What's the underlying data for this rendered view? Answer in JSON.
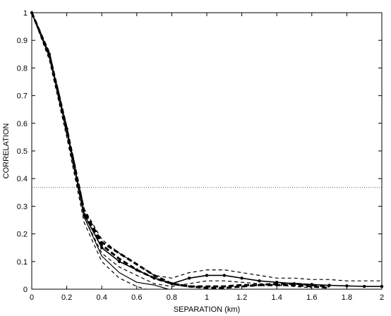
{
  "chart_data": {
    "type": "line",
    "title": "",
    "xlabel": "SEPARATION (km)",
    "ylabel": "CORRELATION",
    "xlim": [
      0,
      2
    ],
    "ylim": [
      0,
      1
    ],
    "xticks": [
      0,
      0.2,
      0.4,
      0.6,
      0.8,
      1,
      1.2,
      1.4,
      1.6,
      1.8,
      2
    ],
    "xtick_labels": [
      "0",
      "0.2",
      "0.4",
      "0.6",
      "0.8",
      "1",
      "1.2",
      "1.4",
      "1.6",
      "1.8",
      "2"
    ],
    "yticks": [
      0,
      0.1,
      0.2,
      0.3,
      0.4,
      0.5,
      0.6,
      0.7,
      0.8,
      0.9,
      1
    ],
    "ytick_labels": [
      "0",
      "0.1",
      "0.2",
      "0.3",
      "0.4",
      "0.5",
      "0.6",
      "0.7",
      "0.8",
      "0.9",
      "1"
    ],
    "grid": false,
    "reference_line": {
      "y": 0.368,
      "style": "dotted"
    },
    "series": [
      {
        "style": "solid-markers",
        "color": "#000000",
        "x": [
          0,
          0.1,
          0.2,
          0.3,
          0.4,
          0.5,
          0.6,
          0.7,
          0.8,
          0.9,
          1.0,
          1.1,
          1.2,
          1.3,
          1.4,
          1.5,
          1.6,
          1.7,
          1.8,
          1.9,
          2.0
        ],
        "y": [
          1.0,
          0.85,
          0.58,
          0.27,
          0.15,
          0.1,
          0.07,
          0.04,
          0.02,
          0.04,
          0.05,
          0.05,
          0.04,
          0.03,
          0.025,
          0.02,
          0.017,
          0.014,
          0.012,
          0.01,
          0.01
        ]
      },
      {
        "style": "solid",
        "color": "#000000",
        "x": [
          0,
          0.1,
          0.2,
          0.3,
          0.4,
          0.5,
          0.6,
          0.7,
          0.78
        ],
        "y": [
          1.0,
          0.84,
          0.57,
          0.26,
          0.12,
          0.06,
          0.025,
          0.015,
          0.0
        ]
      },
      {
        "style": "heavy-dashed",
        "color": "#000000",
        "x": [
          0,
          0.1,
          0.2,
          0.3,
          0.4,
          0.5,
          0.6,
          0.7,
          0.8,
          0.9,
          1.0,
          1.1,
          1.2,
          1.3,
          1.4,
          1.5,
          1.6,
          1.7
        ],
        "y": [
          1.0,
          0.85,
          0.58,
          0.28,
          0.17,
          0.13,
          0.09,
          0.05,
          0.02,
          0.01,
          0.01,
          0.01,
          0.015,
          0.015,
          0.015,
          0.015,
          0.01,
          0.005
        ]
      },
      {
        "style": "heavy-dashed",
        "color": "#000000",
        "x": [
          0,
          0.1,
          0.2,
          0.3,
          0.4,
          0.5,
          0.6,
          0.7,
          0.8,
          0.9,
          1.0,
          1.1,
          1.2,
          1.3,
          1.4,
          1.5,
          1.6,
          1.7
        ],
        "y": [
          1.0,
          0.85,
          0.57,
          0.27,
          0.16,
          0.11,
          0.07,
          0.04,
          0.02,
          0.01,
          0.005,
          0.005,
          0.01,
          0.015,
          0.02,
          0.02,
          0.015,
          0.01
        ]
      },
      {
        "style": "dashed",
        "color": "#000000",
        "x": [
          0,
          0.1,
          0.2,
          0.3,
          0.4,
          0.5,
          0.6,
          0.7,
          0.8,
          0.9,
          1.0,
          1.1,
          1.2,
          1.3,
          1.4,
          1.5,
          1.6,
          1.7,
          1.8,
          1.9,
          2.0
        ],
        "y": [
          1.0,
          0.86,
          0.59,
          0.29,
          0.18,
          0.13,
          0.09,
          0.05,
          0.04,
          0.06,
          0.07,
          0.07,
          0.06,
          0.05,
          0.04,
          0.04,
          0.035,
          0.035,
          0.03,
          0.03,
          0.03
        ]
      },
      {
        "style": "dashed",
        "color": "#000000",
        "x": [
          0,
          0.1,
          0.2,
          0.3,
          0.4,
          0.5,
          0.6,
          0.7,
          0.8,
          0.9,
          1.0,
          1.1,
          1.2,
          1.3,
          1.4,
          1.5,
          1.6
        ],
        "y": [
          1.0,
          0.85,
          0.57,
          0.26,
          0.13,
          0.08,
          0.05,
          0.02,
          0.01,
          0.02,
          0.03,
          0.03,
          0.025,
          0.02,
          0.015,
          0.01,
          0.005
        ]
      },
      {
        "style": "dashed",
        "color": "#000000",
        "x": [
          0,
          0.1,
          0.2,
          0.3,
          0.4,
          0.5,
          0.6,
          0.65
        ],
        "y": [
          1.0,
          0.83,
          0.55,
          0.24,
          0.1,
          0.04,
          0.01,
          0.0
        ]
      }
    ]
  }
}
